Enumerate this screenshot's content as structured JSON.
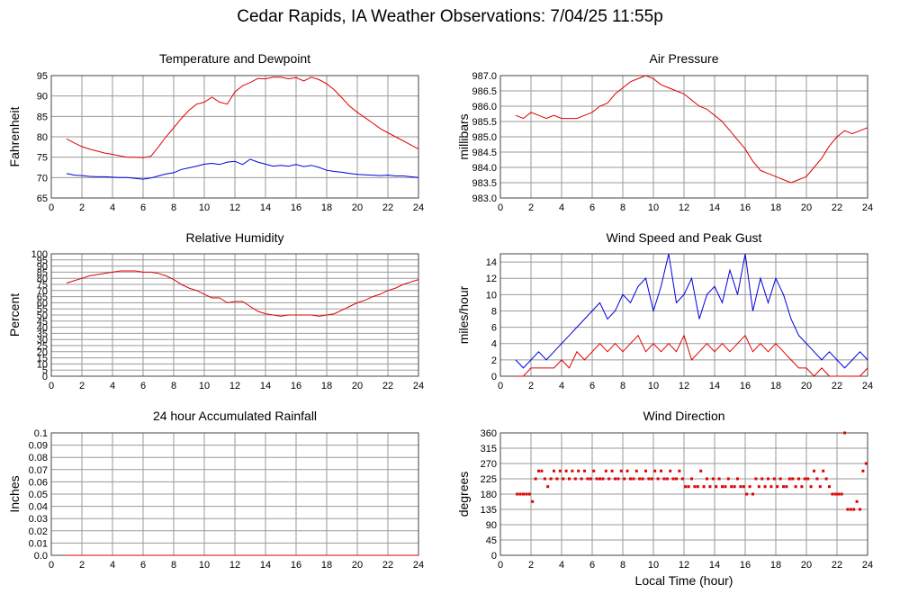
{
  "page": {
    "title": "Cedar Rapids, IA Weather Observations: 7/04/25 11:55p"
  },
  "colors": {
    "red": "#e00000",
    "blue": "#0000dd",
    "grid": "#9a9a9a"
  },
  "chart_data": [
    {
      "id": "temp",
      "type": "line",
      "title": "Temperature and Dewpoint",
      "ylabel": "Fahrenheit",
      "xlabel": "",
      "xlim": [
        0,
        24
      ],
      "ylim": [
        65,
        95
      ],
      "yticks": [
        "65",
        "70",
        "75",
        "80",
        "85",
        "90",
        "95"
      ],
      "xticks": [
        "2",
        "4",
        "6",
        "8",
        "10",
        "12",
        "14",
        "16",
        "18",
        "20",
        "22",
        "24"
      ],
      "series": [
        {
          "color": "#e00000",
          "x": [
            1,
            1.5,
            2,
            2.5,
            3,
            3.5,
            4,
            4.5,
            5,
            5.5,
            6,
            6.5,
            7,
            7.5,
            8,
            8.5,
            9,
            9.5,
            10,
            10.5,
            11,
            11.5,
            12,
            12.5,
            13,
            13.5,
            14,
            14.5,
            15,
            15.5,
            16,
            16.5,
            17,
            17.5,
            18,
            18.5,
            19,
            19.5,
            20,
            20.5,
            21,
            21.5,
            22,
            22.5,
            23,
            23.5,
            24
          ],
          "y": [
            79.5,
            78.5,
            77.6,
            77,
            76.5,
            76,
            75.7,
            75.3,
            75,
            75,
            74.9,
            75.2,
            77.5,
            80,
            82.2,
            84.5,
            86.5,
            88,
            88.5,
            89.7,
            88.5,
            88,
            91,
            92.5,
            93.3,
            94.3,
            94.2,
            94.6,
            94.6,
            94.2,
            94.5,
            93.7,
            94.6,
            94,
            93,
            91.5,
            89.5,
            87.5,
            86,
            84.7,
            83.4,
            82,
            81,
            80,
            79,
            78,
            77
          ]
        },
        {
          "color": "#0000dd",
          "x": [
            1,
            1.5,
            2,
            2.5,
            3,
            3.5,
            4,
            4.5,
            5,
            5.5,
            6,
            6.5,
            7,
            7.5,
            8,
            8.5,
            9,
            9.5,
            10,
            10.5,
            11,
            11.5,
            12,
            12.5,
            13,
            13.5,
            14,
            14.5,
            15,
            15.5,
            16,
            16.5,
            17,
            17.5,
            18,
            18.5,
            19,
            19.5,
            20,
            20.5,
            21,
            21.5,
            22,
            22.5,
            23,
            23.5,
            24
          ],
          "y": [
            71,
            70.6,
            70.5,
            70.3,
            70.2,
            70.2,
            70.1,
            70,
            70,
            69.8,
            69.6,
            69.9,
            70.4,
            70.9,
            71.2,
            72,
            72.4,
            72.8,
            73.3,
            73.5,
            73.2,
            73.8,
            74,
            73.2,
            74.5,
            73.8,
            73.3,
            72.8,
            73,
            72.8,
            73.2,
            72.7,
            73,
            72.5,
            71.8,
            71.5,
            71.3,
            71,
            70.8,
            70.7,
            70.6,
            70.5,
            70.6,
            70.4,
            70.4,
            70.2,
            70
          ]
        }
      ]
    },
    {
      "id": "pressure",
      "type": "line",
      "title": "Air Pressure",
      "ylabel": "millibars",
      "xlabel": "",
      "xlim": [
        0,
        24
      ],
      "ylim": [
        983.0,
        987.0
      ],
      "yticks": [
        "983.0",
        "983.5",
        "984.0",
        "984.5",
        "985.0",
        "985.5",
        "986.0",
        "986.5",
        "987.0"
      ],
      "xticks": [
        "2",
        "4",
        "6",
        "8",
        "10",
        "12",
        "14",
        "16",
        "18",
        "20",
        "22",
        "24"
      ],
      "series": [
        {
          "color": "#e00000",
          "x": [
            1,
            1.5,
            2,
            2.5,
            3,
            3.5,
            4,
            4.5,
            5,
            5.5,
            6,
            6.5,
            7,
            7.5,
            8,
            8.5,
            9,
            9.5,
            10,
            10.5,
            11,
            11.5,
            12,
            12.5,
            13,
            13.5,
            14,
            14.5,
            15,
            15.5,
            16,
            16.5,
            17,
            17.5,
            18,
            18.5,
            19,
            19.5,
            20,
            20.5,
            21,
            21.5,
            22,
            22.5,
            23,
            23.5,
            24
          ],
          "y": [
            985.7,
            985.6,
            985.8,
            985.7,
            985.6,
            985.7,
            985.6,
            985.6,
            985.6,
            985.7,
            985.8,
            986.0,
            986.1,
            986.4,
            986.6,
            986.8,
            986.9,
            987.0,
            986.9,
            986.7,
            986.6,
            986.5,
            986.4,
            986.2,
            986.0,
            985.9,
            985.7,
            985.5,
            985.2,
            984.9,
            984.6,
            984.2,
            983.9,
            983.8,
            983.7,
            983.6,
            983.5,
            983.6,
            983.7,
            984.0,
            984.3,
            984.7,
            985.0,
            985.2,
            985.1,
            985.2,
            985.3
          ]
        }
      ]
    },
    {
      "id": "humidity",
      "type": "line",
      "title": "Relative Humidity",
      "ylabel": "Percent",
      "xlabel": "",
      "xlim": [
        0,
        24
      ],
      "ylim": [
        0,
        100
      ],
      "yticks": [
        "0",
        "5",
        "10",
        "15",
        "20",
        "25",
        "30",
        "35",
        "40",
        "45",
        "50",
        "55",
        "60",
        "65",
        "70",
        "75",
        "80",
        "85",
        "90",
        "95",
        "100"
      ],
      "xticks": [
        "2",
        "4",
        "6",
        "8",
        "10",
        "12",
        "14",
        "16",
        "18",
        "20",
        "22",
        "24"
      ],
      "series": [
        {
          "color": "#e00000",
          "x": [
            1,
            1.5,
            2,
            2.5,
            3,
            3.5,
            4,
            4.5,
            5,
            5.5,
            6,
            6.5,
            7,
            7.5,
            8,
            8.5,
            9,
            9.5,
            10,
            10.5,
            11,
            11.5,
            12,
            12.5,
            13,
            13.5,
            14,
            14.5,
            15,
            15.5,
            16,
            16.5,
            17,
            17.5,
            18,
            18.5,
            19,
            19.5,
            20,
            20.5,
            21,
            21.5,
            22,
            22.5,
            23,
            23.5,
            24
          ],
          "y": [
            76,
            78,
            80,
            82,
            83,
            84,
            85,
            86,
            86,
            86,
            85,
            85,
            84,
            82,
            79,
            75,
            72,
            70,
            67,
            64,
            64,
            60,
            61,
            61,
            57,
            53,
            51,
            50,
            49,
            50,
            50,
            50,
            50,
            49,
            50,
            51,
            54,
            57,
            60,
            62,
            65,
            67,
            70,
            72,
            75,
            77,
            79
          ]
        }
      ]
    },
    {
      "id": "wind",
      "type": "line",
      "title": "Wind Speed and Peak Gust",
      "ylabel": "miles/hour",
      "xlabel": "",
      "xlim": [
        0,
        24
      ],
      "ylim": [
        0,
        15
      ],
      "yticks": [
        "0",
        "2",
        "4",
        "6",
        "8",
        "10",
        "12",
        "14"
      ],
      "xticks": [
        "2",
        "4",
        "6",
        "8",
        "10",
        "12",
        "14",
        "16",
        "18",
        "20",
        "22",
        "24"
      ],
      "series": [
        {
          "color": "#0000dd",
          "x": [
            1,
            1.5,
            2,
            2.5,
            3,
            3.5,
            4,
            4.5,
            5,
            5.5,
            6,
            6.5,
            7,
            7.5,
            8,
            8.5,
            9,
            9.5,
            10,
            10.5,
            11,
            11.5,
            12,
            12.5,
            13,
            13.5,
            14,
            14.5,
            15,
            15.5,
            16,
            16.5,
            17,
            17.5,
            18,
            18.5,
            19,
            19.5,
            20,
            20.5,
            21,
            21.5,
            22,
            22.5,
            23,
            23.5,
            24
          ],
          "y": [
            2,
            1,
            2,
            3,
            2,
            3,
            4,
            5,
            6,
            7,
            8,
            9,
            7,
            8,
            10,
            9,
            11,
            12,
            8,
            11,
            15,
            9,
            10,
            12,
            7,
            10,
            11,
            9,
            13,
            10,
            15,
            8,
            12,
            9,
            12,
            10,
            7,
            5,
            4,
            3,
            2,
            3,
            2,
            1,
            2,
            3,
            2
          ]
        },
        {
          "color": "#e00000",
          "x": [
            1,
            1.5,
            2,
            2.5,
            3,
            3.5,
            4,
            4.5,
            5,
            5.5,
            6,
            6.5,
            7,
            7.5,
            8,
            8.5,
            9,
            9.5,
            10,
            10.5,
            11,
            11.5,
            12,
            12.5,
            13,
            13.5,
            14,
            14.5,
            15,
            15.5,
            16,
            16.5,
            17,
            17.5,
            18,
            18.5,
            19,
            19.5,
            20,
            20.5,
            21,
            21.5,
            22,
            22.5,
            23,
            23.5,
            24
          ],
          "y": [
            0,
            0,
            1,
            1,
            1,
            1,
            2,
            1,
            3,
            2,
            3,
            4,
            3,
            4,
            3,
            4,
            5,
            3,
            4,
            3,
            4,
            3,
            5,
            2,
            3,
            4,
            3,
            4,
            3,
            4,
            5,
            3,
            4,
            3,
            4,
            3,
            2,
            1,
            1,
            0,
            1,
            0,
            0,
            0,
            0,
            0,
            1
          ]
        }
      ]
    },
    {
      "id": "rain",
      "type": "line",
      "title": "24 hour Accumulated Rainfall",
      "ylabel": "Inches",
      "xlabel": "",
      "xlim": [
        0,
        24
      ],
      "ylim": [
        0,
        0.1
      ],
      "yticks": [
        "0.0",
        "0.01",
        "0.02",
        "0.03",
        "0.04",
        "0.05",
        "0.06",
        "0.07",
        "0.08",
        "0.09",
        "0.1"
      ],
      "xticks": [
        "2",
        "4",
        "6",
        "8",
        "10",
        "12",
        "14",
        "16",
        "18",
        "20",
        "22",
        "24"
      ],
      "series": [
        {
          "color": "#e00000",
          "x": [
            1,
            24
          ],
          "y": [
            0,
            0
          ]
        }
      ]
    },
    {
      "id": "direction",
      "type": "scatter",
      "title": "Wind Direction",
      "ylabel": "degrees",
      "xlabel": "Local Time (hour)",
      "xlim": [
        0,
        24
      ],
      "ylim": [
        0,
        360
      ],
      "yticks": [
        "0",
        "45",
        "90",
        "135",
        "180",
        "225",
        "270",
        "315",
        "360"
      ],
      "xticks": [
        "2",
        "4",
        "6",
        "8",
        "10",
        "12",
        "14",
        "16",
        "18",
        "20",
        "22",
        "24"
      ],
      "series": [
        {
          "color": "#e00000",
          "x": [
            1.1,
            1.3,
            1.5,
            1.7,
            1.9,
            2.1,
            2.3,
            2.5,
            2.7,
            2.9,
            3.1,
            3.3,
            3.5,
            3.7,
            3.9,
            4.1,
            4.3,
            4.5,
            4.7,
            4.9,
            5.1,
            5.3,
            5.5,
            5.7,
            5.9,
            6.1,
            6.3,
            6.5,
            6.7,
            6.9,
            7.1,
            7.3,
            7.5,
            7.7,
            7.9,
            8.1,
            8.3,
            8.5,
            8.7,
            8.9,
            9.1,
            9.3,
            9.5,
            9.7,
            9.9,
            10.1,
            10.3,
            10.5,
            10.7,
            10.9,
            11.1,
            11.3,
            11.5,
            11.7,
            11.9,
            12.1,
            12.3,
            12.5,
            12.7,
            12.9,
            13.1,
            13.3,
            13.5,
            13.7,
            13.9,
            14.1,
            14.3,
            14.5,
            14.7,
            14.9,
            15.1,
            15.3,
            15.5,
            15.7,
            15.9,
            16.1,
            16.3,
            16.5,
            16.7,
            16.9,
            17.1,
            17.3,
            17.5,
            17.7,
            17.9,
            18.1,
            18.3,
            18.5,
            18.7,
            18.9,
            19.1,
            19.3,
            19.5,
            19.7,
            19.9,
            20.1,
            20.3,
            20.5,
            20.7,
            20.9,
            21.1,
            21.3,
            21.5,
            21.7,
            21.9,
            22.1,
            22.3,
            22.5,
            22.7,
            22.9,
            23.1,
            23.3,
            23.5,
            23.7,
            23.9
          ],
          "y": [
            180,
            180,
            180,
            180,
            180,
            158,
            225,
            248,
            248,
            225,
            202,
            225,
            248,
            225,
            248,
            225,
            248,
            225,
            248,
            225,
            248,
            225,
            248,
            225,
            225,
            248,
            225,
            225,
            225,
            248,
            225,
            248,
            225,
            225,
            248,
            225,
            248,
            225,
            225,
            248,
            225,
            225,
            248,
            225,
            225,
            248,
            225,
            248,
            225,
            225,
            248,
            225,
            225,
            248,
            225,
            202,
            202,
            225,
            202,
            202,
            248,
            202,
            225,
            202,
            225,
            202,
            225,
            202,
            202,
            225,
            202,
            202,
            225,
            202,
            202,
            180,
            202,
            180,
            225,
            202,
            225,
            202,
            225,
            202,
            225,
            202,
            225,
            202,
            202,
            225,
            225,
            202,
            225,
            202,
            225,
            225,
            202,
            248,
            225,
            202,
            248,
            225,
            202,
            180,
            180,
            180,
            180,
            360,
            135,
            135,
            135,
            158,
            135,
            248,
            270
          ]
        }
      ]
    }
  ]
}
